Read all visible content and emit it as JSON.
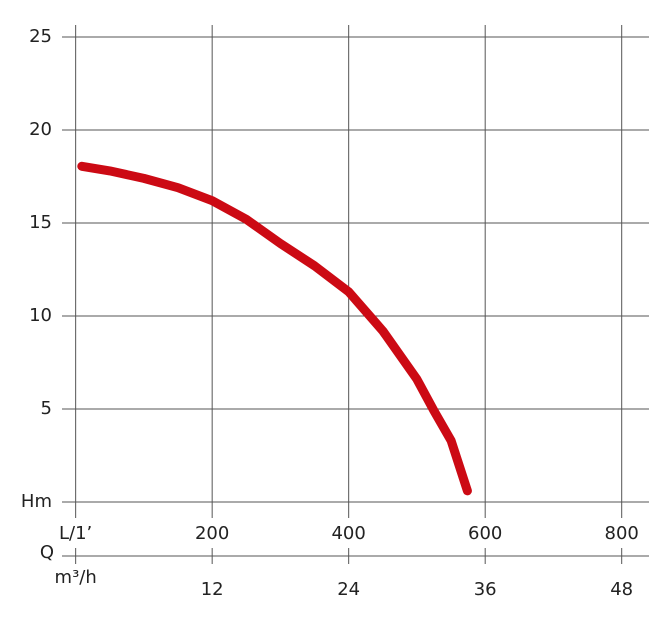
{
  "chart_data": {
    "type": "line",
    "x": [
      9,
      50,
      100,
      150,
      200,
      250,
      300,
      350,
      400,
      450,
      500,
      525,
      550,
      574
    ],
    "series": [
      {
        "name": "Hm",
        "color": "#cc0a14",
        "values": [
          18.05,
          17.8,
          17.4,
          16.9,
          16.2,
          15.2,
          13.9,
          12.7,
          11.3,
          9.2,
          6.6,
          4.9,
          3.3,
          0.6
        ]
      }
    ],
    "xlim": [
      -20,
      840
    ],
    "xticks": [
      {
        "value": 0,
        "label": "L/1’"
      },
      200,
      400,
      600,
      800
    ],
    "x2lim": [
      -1.2,
      50.4
    ],
    "x2ticks": [
      {
        "value": 0,
        "label": "m³/h"
      },
      12,
      24,
      36,
      48
    ],
    "x_axis_label": "Q",
    "ylim": [
      0,
      25
    ],
    "yticks": [
      {
        "value": 0,
        "label": "Hm"
      },
      5,
      10,
      15,
      20,
      25
    ],
    "grid": true
  }
}
